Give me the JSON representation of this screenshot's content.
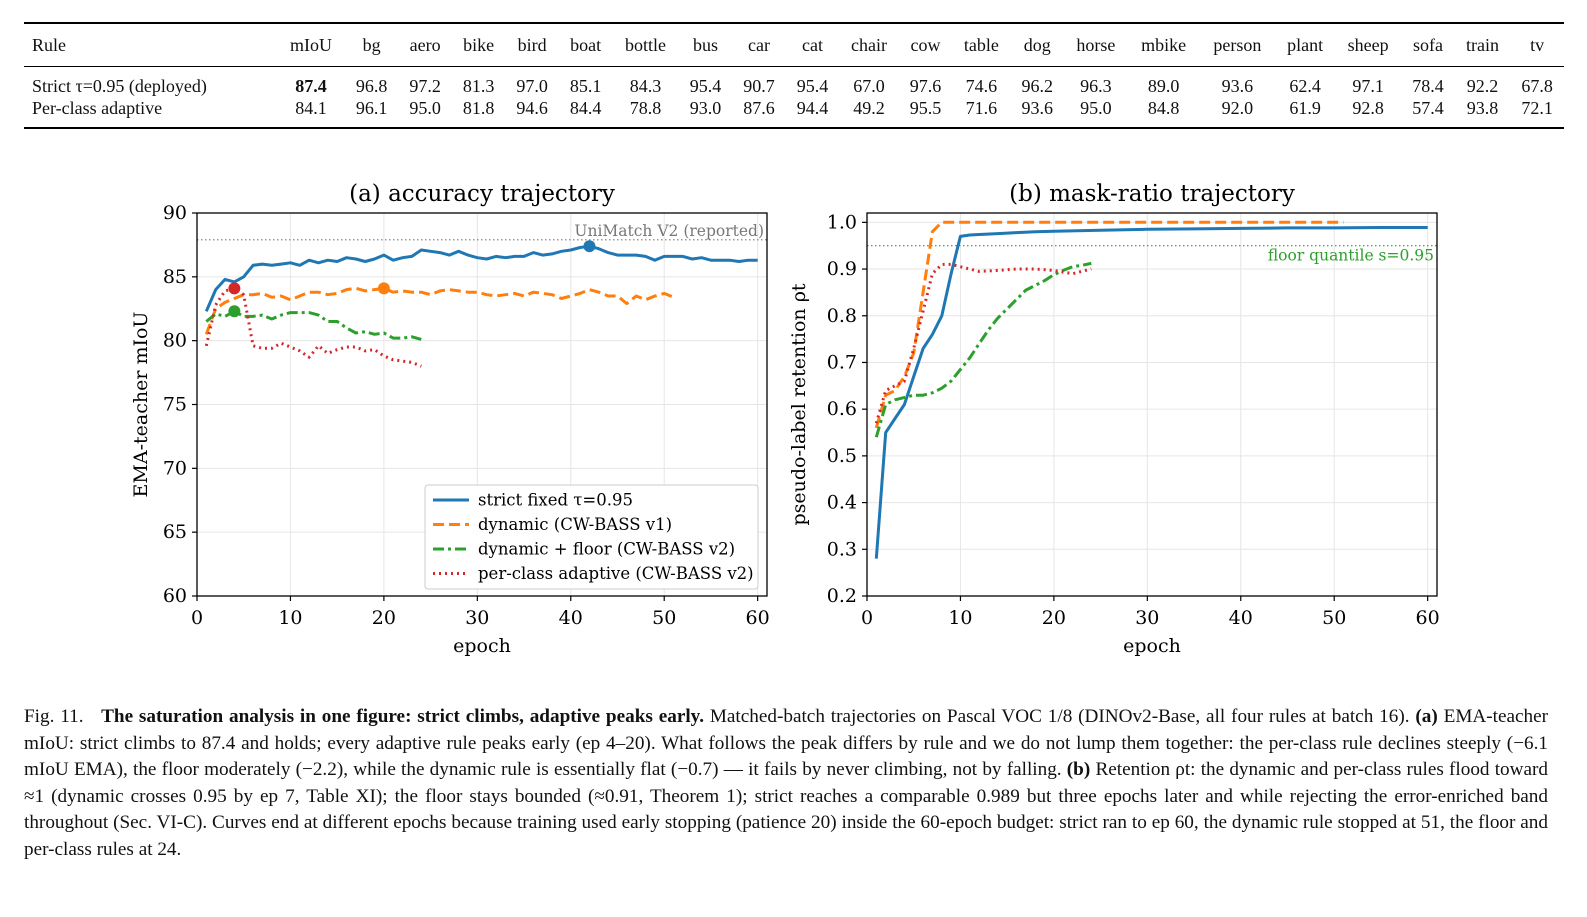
{
  "table": {
    "headers": [
      "Rule",
      "mIoU",
      "bg",
      "aero",
      "bike",
      "bird",
      "boat",
      "bottle",
      "bus",
      "car",
      "cat",
      "chair",
      "cow",
      "table",
      "dog",
      "horse",
      "mbike",
      "person",
      "plant",
      "sheep",
      "sofa",
      "train",
      "tv"
    ],
    "rows": [
      {
        "rule": "Strict τ=0.95 (deployed)",
        "values": [
          "87.4",
          "96.8",
          "97.2",
          "81.3",
          "97.0",
          "85.1",
          "84.3",
          "95.4",
          "90.7",
          "95.4",
          "67.0",
          "97.6",
          "74.6",
          "96.2",
          "96.3",
          "89.0",
          "93.6",
          "62.4",
          "97.1",
          "78.4",
          "92.2",
          "67.8"
        ],
        "bold_index": 0
      },
      {
        "rule": "Per-class adaptive",
        "values": [
          "84.1",
          "96.1",
          "95.0",
          "81.8",
          "94.6",
          "84.4",
          "78.8",
          "93.0",
          "87.6",
          "94.4",
          "49.2",
          "95.5",
          "71.6",
          "93.6",
          "95.0",
          "84.8",
          "92.0",
          "61.9",
          "92.8",
          "57.4",
          "93.8",
          "72.1"
        ],
        "bold_index": -1
      }
    ]
  },
  "chart_data": [
    {
      "type": "line",
      "title": "(a) accuracy trajectory",
      "xlabel": "epoch",
      "ylabel": "EMA-teacher mIoU",
      "xlim": [
        0,
        61
      ],
      "ylim": [
        60,
        90
      ],
      "xticks": [
        0,
        10,
        20,
        30,
        40,
        50,
        60
      ],
      "yticks": [
        60,
        65,
        70,
        75,
        80,
        85,
        90
      ],
      "grid": true,
      "legend_position": "lower-right",
      "reference_line": {
        "y": 87.9,
        "label": "UniMatch V2 (reported)",
        "color": "#777777"
      },
      "series": [
        {
          "name": "strict fixed τ=0.95",
          "color": "#1f77b4",
          "dash": "solid",
          "x": [
            1,
            2,
            3,
            4,
            5,
            6,
            7,
            8,
            9,
            10,
            11,
            12,
            13,
            14,
            15,
            16,
            17,
            18,
            19,
            20,
            21,
            22,
            23,
            24,
            25,
            26,
            27,
            28,
            29,
            30,
            31,
            32,
            33,
            34,
            35,
            36,
            37,
            38,
            39,
            40,
            41,
            42,
            43,
            44,
            45,
            46,
            47,
            48,
            49,
            50,
            51,
            52,
            53,
            54,
            55,
            56,
            57,
            58,
            59,
            60
          ],
          "y": [
            82.3,
            84.0,
            84.8,
            84.6,
            85.0,
            85.9,
            86.0,
            85.9,
            86.0,
            86.1,
            85.9,
            86.3,
            86.1,
            86.3,
            86.2,
            86.5,
            86.4,
            86.2,
            86.4,
            86.7,
            86.3,
            86.5,
            86.6,
            87.1,
            87.0,
            86.9,
            86.7,
            87.0,
            86.7,
            86.5,
            86.4,
            86.6,
            86.5,
            86.6,
            86.6,
            86.9,
            86.7,
            86.8,
            87.0,
            87.1,
            87.3,
            87.4,
            87.2,
            86.9,
            86.7,
            86.7,
            86.7,
            86.6,
            86.3,
            86.6,
            86.6,
            86.6,
            86.4,
            86.5,
            86.3,
            86.3,
            86.3,
            86.2,
            86.3,
            86.3
          ],
          "peak": {
            "x": 42,
            "y": 87.4
          }
        },
        {
          "name": "dynamic (CW-BASS v1)",
          "color": "#ff7f0e",
          "dash": "dashed",
          "x": [
            1,
            2,
            3,
            4,
            5,
            6,
            7,
            8,
            9,
            10,
            11,
            12,
            13,
            14,
            15,
            16,
            17,
            18,
            19,
            20,
            21,
            22,
            23,
            24,
            25,
            26,
            27,
            28,
            29,
            30,
            31,
            32,
            33,
            34,
            35,
            36,
            37,
            38,
            39,
            40,
            41,
            42,
            43,
            44,
            45,
            46,
            47,
            48,
            49,
            50,
            51
          ],
          "y": [
            80.5,
            82.5,
            83.0,
            83.3,
            83.6,
            83.6,
            83.7,
            83.4,
            83.5,
            83.2,
            83.5,
            83.8,
            83.8,
            83.6,
            83.7,
            84.0,
            84.1,
            83.9,
            84.0,
            84.1,
            83.8,
            83.9,
            83.8,
            83.8,
            83.6,
            83.9,
            84.0,
            83.9,
            83.8,
            83.8,
            83.6,
            83.5,
            83.6,
            83.7,
            83.5,
            83.8,
            83.7,
            83.6,
            83.3,
            83.5,
            83.7,
            84.0,
            83.8,
            83.5,
            83.5,
            82.9,
            83.5,
            83.2,
            83.5,
            83.7,
            83.4
          ],
          "peak": {
            "x": 20,
            "y": 84.1
          }
        },
        {
          "name": "dynamic + floor (CW-BASS v2)",
          "color": "#2ca02c",
          "dash": "dashdot",
          "x": [
            1,
            2,
            3,
            4,
            5,
            6,
            7,
            8,
            9,
            10,
            11,
            12,
            13,
            14,
            15,
            16,
            17,
            18,
            19,
            20,
            21,
            22,
            23,
            24
          ],
          "y": [
            81.5,
            82.1,
            81.9,
            82.3,
            81.9,
            81.9,
            82.0,
            81.7,
            82.0,
            82.2,
            82.2,
            82.2,
            82.0,
            81.5,
            81.5,
            81.0,
            80.6,
            80.7,
            80.5,
            80.6,
            80.2,
            80.2,
            80.3,
            80.1
          ],
          "peak": {
            "x": 4,
            "y": 82.3
          }
        },
        {
          "name": "per-class adaptive (CW-BASS v2)",
          "color": "#d62728",
          "dash": "dotted",
          "x": [
            1,
            2,
            3,
            4,
            5,
            6,
            7,
            8,
            9,
            10,
            11,
            12,
            13,
            14,
            15,
            16,
            17,
            18,
            19,
            20,
            21,
            22,
            23,
            24
          ],
          "y": [
            79.6,
            82.8,
            83.9,
            84.1,
            83.6,
            79.6,
            79.4,
            79.4,
            79.8,
            79.5,
            79.2,
            78.7,
            79.6,
            79.0,
            79.3,
            79.5,
            79.5,
            79.2,
            79.3,
            78.8,
            78.5,
            78.4,
            78.3,
            78.0
          ],
          "peak": {
            "x": 4,
            "y": 84.1
          }
        }
      ]
    },
    {
      "type": "line",
      "title": "(b) mask-ratio trajectory",
      "xlabel": "epoch",
      "ylabel": "pseudo-label retention ρt",
      "xlim": [
        0,
        61
      ],
      "ylim": [
        0.2,
        1.02
      ],
      "xticks": [
        0,
        10,
        20,
        30,
        40,
        50,
        60
      ],
      "yticks": [
        0.2,
        0.3,
        0.4,
        0.5,
        0.6,
        0.7,
        0.8,
        0.9,
        1.0
      ],
      "grid": true,
      "reference_line": {
        "y": 0.95,
        "label": "floor quantile s=0.95",
        "color": "#2ca02c"
      },
      "series": [
        {
          "name": "strict fixed τ=0.95",
          "color": "#1f77b4",
          "dash": "solid",
          "x": [
            1,
            2,
            3,
            4,
            5,
            6,
            7,
            8,
            9,
            10,
            11,
            12,
            14,
            16,
            18,
            20,
            25,
            30,
            35,
            40,
            45,
            50,
            55,
            60
          ],
          "y": [
            0.28,
            0.55,
            0.58,
            0.61,
            0.67,
            0.73,
            0.76,
            0.8,
            0.89,
            0.97,
            0.973,
            0.974,
            0.976,
            0.978,
            0.98,
            0.981,
            0.983,
            0.985,
            0.986,
            0.987,
            0.988,
            0.988,
            0.989,
            0.989
          ]
        },
        {
          "name": "dynamic (CW-BASS v1)",
          "color": "#ff7f0e",
          "dash": "dashed",
          "x": [
            1,
            2,
            3,
            4,
            5,
            6,
            7,
            8,
            9,
            10,
            15,
            20,
            25,
            30,
            35,
            40,
            45,
            50,
            51
          ],
          "y": [
            0.56,
            0.63,
            0.64,
            0.67,
            0.72,
            0.85,
            0.98,
            1.0,
            1.0,
            1.0,
            1.0,
            1.0,
            1.0,
            1.0,
            1.0,
            1.0,
            1.0,
            1.0,
            1.0
          ]
        },
        {
          "name": "dynamic + floor (CW-BASS v2)",
          "color": "#2ca02c",
          "dash": "dashdot",
          "x": [
            1,
            2,
            3,
            4,
            5,
            6,
            7,
            8,
            9,
            10,
            11,
            12,
            13,
            14,
            15,
            16,
            17,
            18,
            19,
            20,
            21,
            22,
            23,
            24
          ],
          "y": [
            0.54,
            0.61,
            0.62,
            0.625,
            0.63,
            0.63,
            0.635,
            0.645,
            0.66,
            0.685,
            0.71,
            0.74,
            0.77,
            0.795,
            0.815,
            0.835,
            0.855,
            0.865,
            0.875,
            0.888,
            0.897,
            0.905,
            0.908,
            0.912
          ]
        },
        {
          "name": "per-class adaptive (CW-BASS v2)",
          "color": "#d62728",
          "dash": "dotted",
          "x": [
            1,
            2,
            3,
            4,
            5,
            6,
            7,
            8,
            9,
            10,
            11,
            12,
            14,
            16,
            18,
            20,
            22,
            24
          ],
          "y": [
            0.57,
            0.64,
            0.65,
            0.66,
            0.73,
            0.81,
            0.89,
            0.91,
            0.91,
            0.905,
            0.9,
            0.895,
            0.897,
            0.9,
            0.9,
            0.897,
            0.89,
            0.9
          ]
        }
      ]
    }
  ],
  "caption": {
    "label": "Fig. 11.",
    "bold": "The saturation analysis in one figure: strict climbs, adaptive peaks early.",
    "parts": [
      {
        "b": false,
        "t": " Matched-batch trajectories on Pascal VOC 1/8 (DINOv2-Base, all four rules at batch 16). "
      },
      {
        "b": true,
        "t": "(a)"
      },
      {
        "b": false,
        "t": " EMA-teacher mIoU: strict climbs to 87.4 and holds; every adaptive rule peaks early (ep 4–20). What follows the peak differs by rule and we do not lump them together: the per-class rule declines steeply (−6.1 mIoU EMA), the floor moderately (−2.2), while the dynamic rule is essentially flat (−0.7) — it fails by never climbing, not by falling. "
      },
      {
        "b": true,
        "t": "(b)"
      },
      {
        "b": false,
        "t": " Retention ρt: the dynamic and per-class rules flood toward ≈1 (dynamic crosses 0.95 by ep 7, Table XI); the floor stays bounded (≈0.91, Theorem 1); strict reaches a comparable 0.989 but three epochs later and while rejecting the error-enriched band throughout (Sec. VI-C). Curves end at different epochs because training used early stopping (patience 20) inside the 60-epoch budget: strict ran to ep 60, the dynamic rule stopped at 51, the floor and per-class rules at 24."
      }
    ]
  }
}
